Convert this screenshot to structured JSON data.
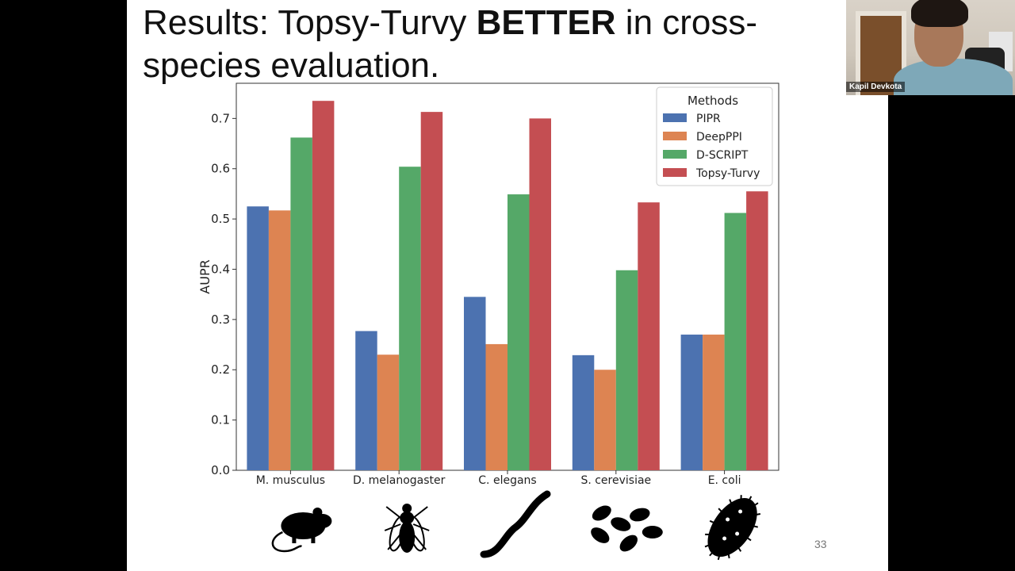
{
  "slide": {
    "title_part1": "Results: Topsy-Turvy ",
    "title_bold": "BETTER",
    "title_part2": " in cross-species evaluation.",
    "page_number": "33"
  },
  "chart_data": {
    "type": "bar",
    "title": "",
    "xlabel": "",
    "ylabel": "AUPR",
    "ylim": [
      0,
      0.77
    ],
    "yticks": [
      "0.0",
      "0.1",
      "0.2",
      "0.3",
      "0.4",
      "0.5",
      "0.6",
      "0.7"
    ],
    "grid": false,
    "legend": {
      "title": "Methods",
      "placement": "top-right"
    },
    "categories": [
      "M. musculus",
      "D. melanogaster",
      "C. elegans",
      "S. cerevisiae",
      "E. coli"
    ],
    "series": [
      {
        "name": "PIPR",
        "color": "#4c72b0",
        "values": [
          0.525,
          0.277,
          0.345,
          0.229,
          0.27
        ]
      },
      {
        "name": "DeepPPI",
        "color": "#dd8452",
        "values": [
          0.517,
          0.23,
          0.251,
          0.2,
          0.27
        ]
      },
      {
        "name": "D-SCRIPT",
        "color": "#55a868",
        "values": [
          0.662,
          0.604,
          0.549,
          0.398,
          0.512
        ]
      },
      {
        "name": "Topsy-Turvy",
        "color": "#c44e52",
        "values": [
          0.735,
          0.713,
          0.7,
          0.533,
          0.555
        ]
      }
    ],
    "species_icons": [
      "mouse-icon",
      "fly-icon",
      "worm-icon",
      "yeast-icon",
      "bacterium-icon"
    ]
  },
  "video": {
    "participant_name": "Kapil Devkota"
  }
}
